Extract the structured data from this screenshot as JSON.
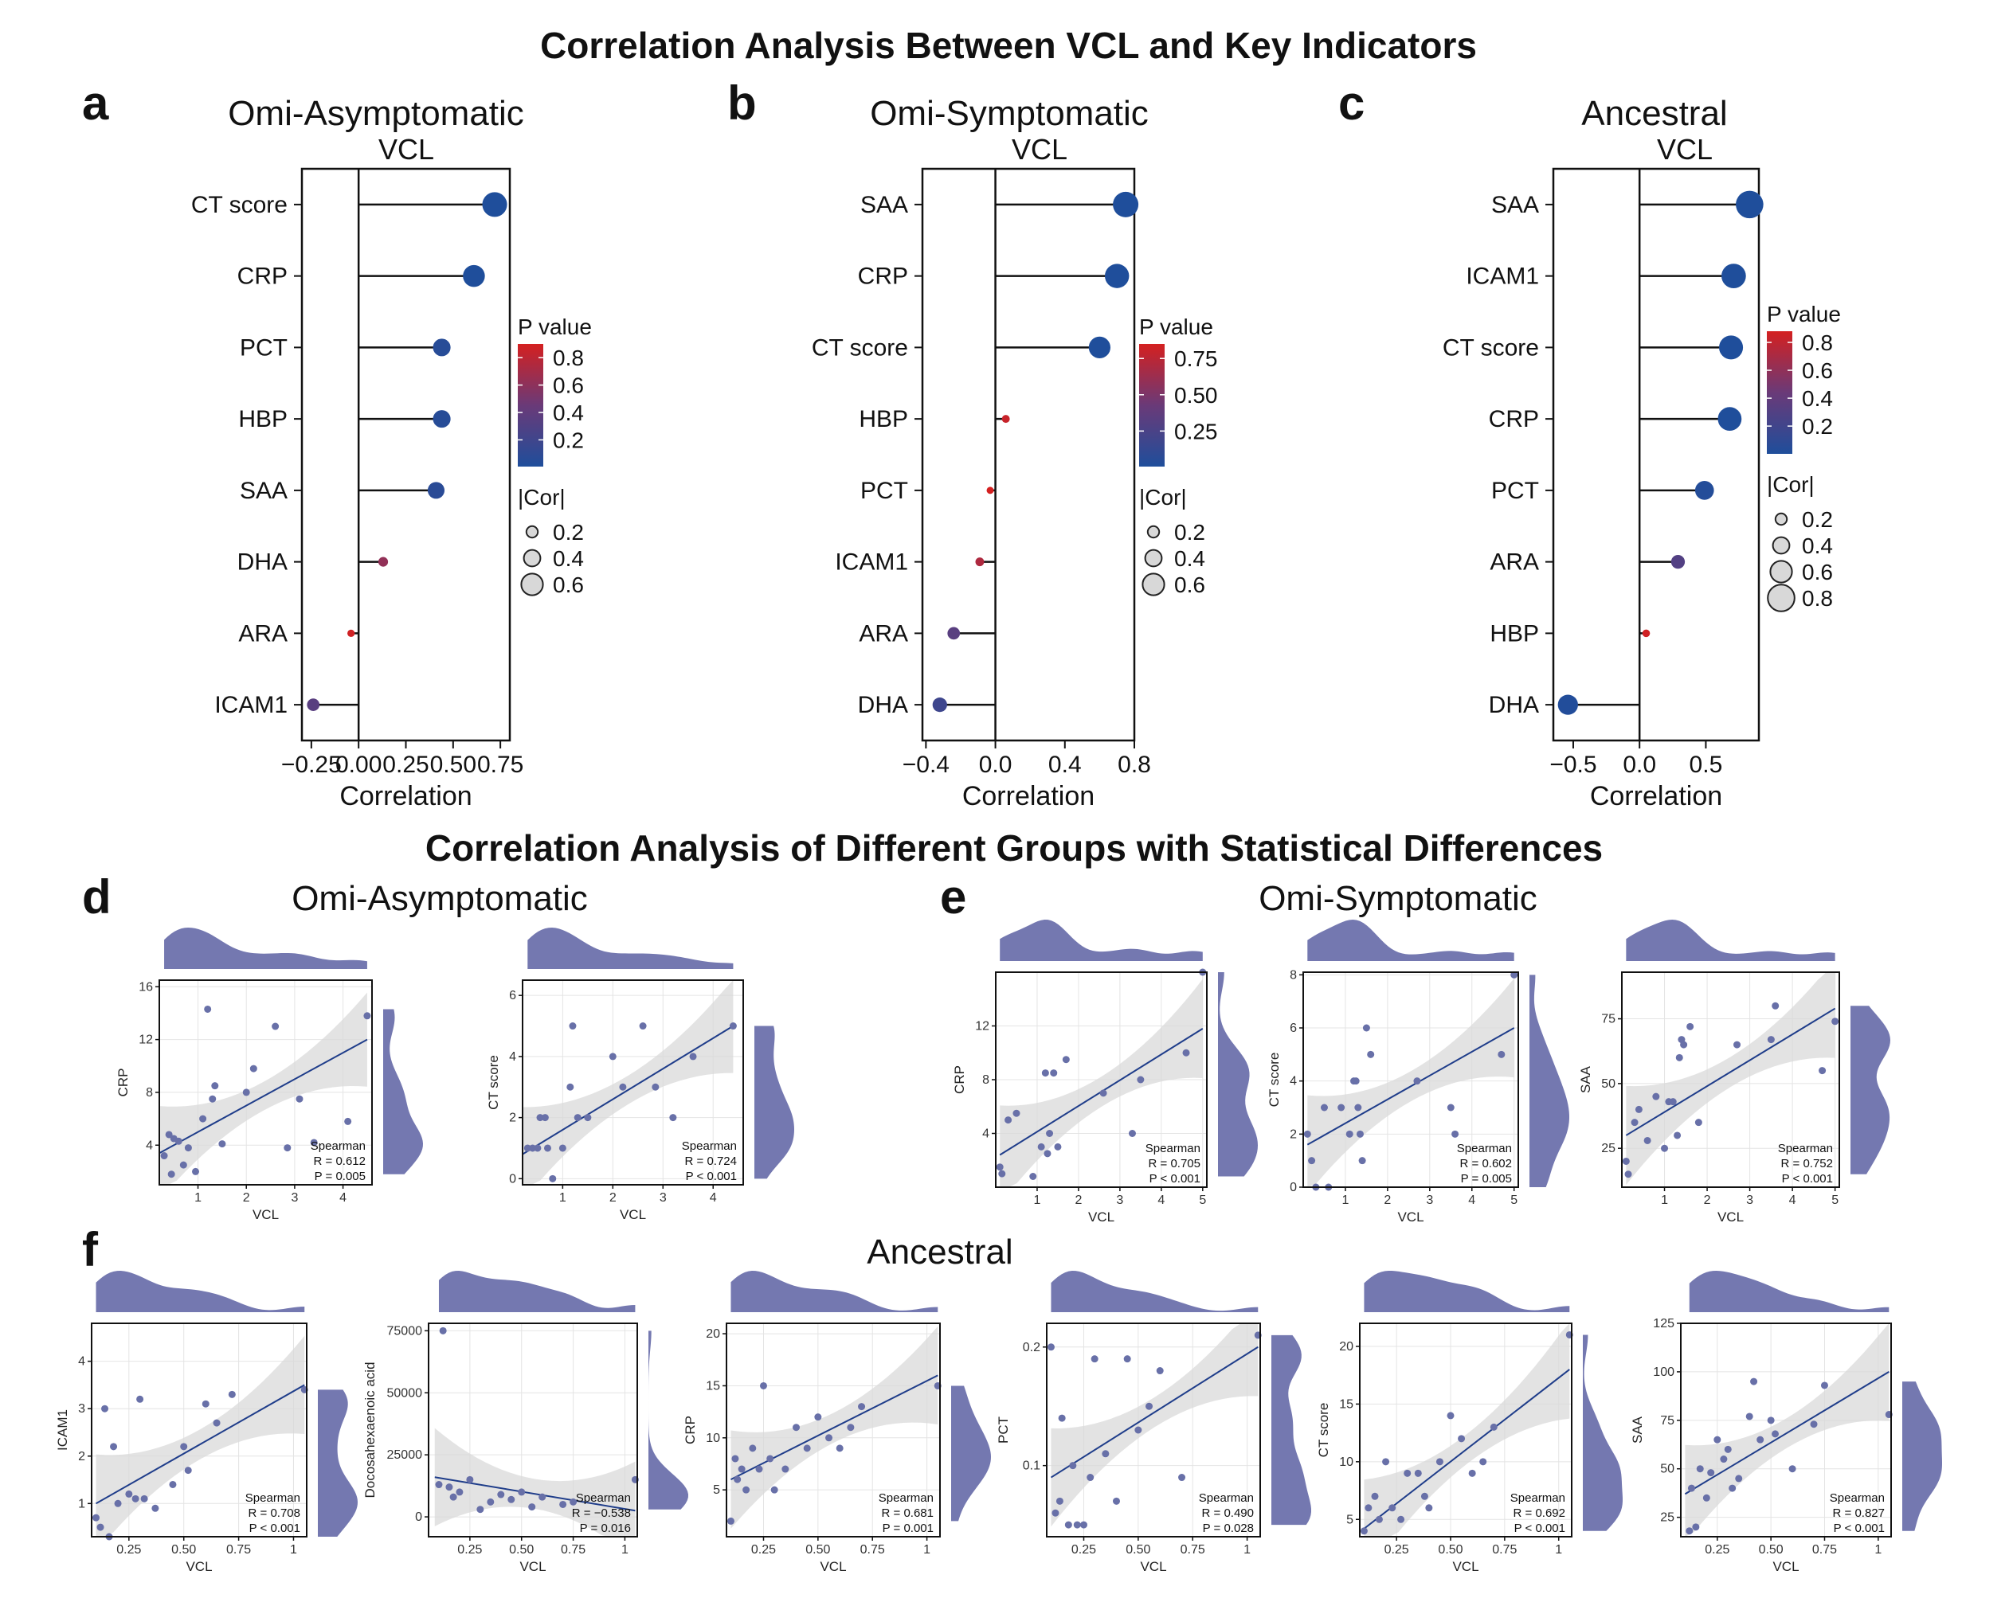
{
  "titles": {
    "top": "Correlation Analysis Between VCL and Key Indicators",
    "bottom": "Correlation Analysis of Different Groups with Statistical Differences"
  },
  "colors": {
    "low_p": "#1f4e9b",
    "mid_p": "#6a3a78",
    "high_p": "#d42020",
    "density": "#7478b0",
    "point": "#6870a8",
    "fit_line": "#1f3d8a",
    "ci_band": "#d9d9d9"
  },
  "lollipop_common": {
    "subtitle": "VCL",
    "xlabel": "Correlation",
    "legend_p_title": "P value",
    "legend_cor_title": "|Cor|"
  },
  "chart_data": [
    {
      "type": "lollipop",
      "panel": "a",
      "title": "Omi-Asymptomatic",
      "subtitle": "VCL",
      "xlabel": "Correlation",
      "xlim": [
        -0.3,
        0.8
      ],
      "xticks": [
        -0.25,
        0,
        0.25,
        0.5,
        0.75
      ],
      "xtick_labels": [
        "−0.25",
        "0.00",
        "0.25",
        "0.50",
        "0.75"
      ],
      "p_range": [
        0.005,
        0.9
      ],
      "p_ticks": [
        0.8,
        0.6,
        0.4,
        0.2
      ],
      "p_tick_labels": [
        "0.8",
        "0.6",
        "0.4",
        "0.2"
      ],
      "cor_ticks": [
        0.2,
        0.4,
        0.6
      ],
      "cor_tick_labels": [
        "0.2",
        "0.4",
        "0.6"
      ],
      "categories": [
        "CT score",
        "CRP",
        "PCT",
        "HBP",
        "SAA",
        "DHA",
        "ARA",
        "ICAM1"
      ],
      "values": [
        0.72,
        0.61,
        0.44,
        0.44,
        0.41,
        0.13,
        -0.04,
        -0.24
      ],
      "p_values": [
        0.001,
        0.005,
        0.05,
        0.05,
        0.07,
        0.62,
        0.88,
        0.35
      ]
    },
    {
      "type": "lollipop",
      "panel": "b",
      "title": "Omi-Symptomatic",
      "subtitle": "VCL",
      "xlabel": "Correlation",
      "xlim": [
        -0.42,
        0.8
      ],
      "xticks": [
        -0.4,
        0,
        0.4,
        0.8
      ],
      "xtick_labels": [
        "−0.4",
        "0.0",
        "0.4",
        "0.8"
      ],
      "p_range": [
        0.005,
        0.85
      ],
      "p_ticks": [
        0.75,
        0.5,
        0.25
      ],
      "p_tick_labels": [
        "0.75",
        "0.50",
        "0.25"
      ],
      "cor_ticks": [
        0.2,
        0.4,
        0.6
      ],
      "cor_tick_labels": [
        "0.2",
        "0.4",
        "0.6"
      ],
      "categories": [
        "SAA",
        "CRP",
        "CT score",
        "HBP",
        "PCT",
        "ICAM1",
        "ARA",
        "DHA"
      ],
      "values": [
        0.75,
        0.7,
        0.6,
        0.06,
        -0.03,
        -0.09,
        -0.24,
        -0.32
      ],
      "p_values": [
        0.001,
        0.001,
        0.005,
        0.8,
        0.85,
        0.7,
        0.33,
        0.18
      ]
    },
    {
      "type": "lollipop",
      "panel": "c",
      "title": "Ancestral",
      "subtitle": "VCL",
      "xlabel": "Correlation",
      "xlim": [
        -0.65,
        0.9
      ],
      "xticks": [
        -0.5,
        0,
        0.5
      ],
      "xtick_labels": [
        "−0.5",
        "0.0",
        "0.5"
      ],
      "p_range": [
        0.001,
        0.88
      ],
      "p_ticks": [
        0.8,
        0.6,
        0.4,
        0.2
      ],
      "p_tick_labels": [
        "0.8",
        "0.6",
        "0.4",
        "0.2"
      ],
      "cor_ticks": [
        0.2,
        0.4,
        0.6,
        0.8
      ],
      "cor_tick_labels": [
        "0.2",
        "0.4",
        "0.6",
        "0.8"
      ],
      "categories": [
        "SAA",
        "ICAM1",
        "CT score",
        "CRP",
        "PCT",
        "ARA",
        "HBP",
        "DHA"
      ],
      "values": [
        0.83,
        0.71,
        0.69,
        0.68,
        0.49,
        0.29,
        0.05,
        -0.54
      ],
      "p_values": [
        0.001,
        0.001,
        0.001,
        0.001,
        0.028,
        0.3,
        0.86,
        0.016
      ]
    },
    {
      "type": "scatter",
      "panel": "d",
      "group": "Omi-Asymptomatic",
      "xlabel": "VCL",
      "ylabel": "CRP",
      "xlim": [
        0.2,
        4.6
      ],
      "ylim": [
        1,
        16.5
      ],
      "xticks": [
        1,
        2,
        3,
        4
      ],
      "yticks": [
        4,
        8,
        12,
        16
      ],
      "ytick_labels": [
        "4",
        "8",
        "12",
        "16"
      ],
      "x": [
        0.3,
        0.4,
        0.45,
        0.5,
        0.6,
        0.7,
        0.8,
        0.95,
        1.1,
        1.2,
        1.3,
        1.35,
        1.5,
        2.0,
        2.15,
        2.6,
        2.85,
        3.1,
        3.4,
        4.1,
        4.5
      ],
      "y": [
        3.2,
        4.8,
        1.8,
        4.5,
        4.3,
        2.5,
        3.8,
        2.0,
        6.0,
        14.3,
        7.5,
        8.5,
        4.1,
        8.0,
        9.8,
        13.0,
        3.8,
        7.5,
        4.2,
        5.8,
        13.8
      ],
      "fit": {
        "x1": 0.2,
        "y1": 3.4,
        "x2": 4.5,
        "y2": 12.0
      },
      "stat_lines": [
        "Spearman",
        "R = 0.612",
        "P = 0.005"
      ]
    },
    {
      "type": "scatter",
      "panel": "d",
      "group": "Omi-Asymptomatic",
      "xlabel": "VCL",
      "ylabel": "CT score",
      "xlim": [
        0.2,
        4.6
      ],
      "ylim": [
        -0.2,
        6.5
      ],
      "xticks": [
        1,
        2,
        3,
        4
      ],
      "yticks": [
        0,
        2,
        4,
        6
      ],
      "ytick_labels": [
        "0",
        "2",
        "4",
        "6"
      ],
      "x": [
        0.3,
        0.4,
        0.5,
        0.55,
        0.65,
        0.7,
        0.8,
        1.0,
        1.15,
        1.2,
        1.3,
        1.5,
        2.0,
        2.2,
        2.6,
        2.85,
        3.2,
        3.6,
        4.4
      ],
      "y": [
        1.0,
        1.0,
        1.0,
        2.0,
        2.0,
        1.0,
        0.0,
        1.0,
        3.0,
        5.0,
        2.0,
        2.0,
        4.0,
        3.0,
        5.0,
        3.0,
        2.0,
        4.0,
        5.0
      ],
      "fit": {
        "x1": 0.2,
        "y1": 0.8,
        "x2": 4.4,
        "y2": 5.0
      },
      "stat_lines": [
        "Spearman",
        "R = 0.724",
        "P < 0.001"
      ]
    },
    {
      "type": "scatter",
      "panel": "e",
      "group": "Omi-Symptomatic",
      "xlabel": "VCL",
      "ylabel": "CRP",
      "xlim": [
        0,
        5.1
      ],
      "ylim": [
        0,
        16
      ],
      "xticks": [
        1,
        2,
        3,
        4,
        5
      ],
      "yticks": [
        4,
        8,
        12
      ],
      "ytick_labels": [
        "4",
        "8",
        "12"
      ],
      "x": [
        0.1,
        0.15,
        0.3,
        0.5,
        0.9,
        1.1,
        1.2,
        1.25,
        1.3,
        1.4,
        1.5,
        1.7,
        2.6,
        3.3,
        3.5,
        4.6,
        5.0
      ],
      "y": [
        1.5,
        1.0,
        5.0,
        5.5,
        0.8,
        3.0,
        8.5,
        2.5,
        4.0,
        8.5,
        3.0,
        9.5,
        7.0,
        4.0,
        8.0,
        10.0,
        16.0
      ],
      "fit": {
        "x1": 0.1,
        "y1": 2.4,
        "x2": 5.0,
        "y2": 11.8
      },
      "stat_lines": [
        "Spearman",
        "R = 0.705",
        "P < 0.001"
      ]
    },
    {
      "type": "scatter",
      "panel": "e",
      "group": "Omi-Symptomatic",
      "xlabel": "VCL",
      "ylabel": "CT score",
      "xlim": [
        0,
        5.1
      ],
      "ylim": [
        0,
        8.1
      ],
      "xticks": [
        1,
        2,
        3,
        4,
        5
      ],
      "yticks": [
        0,
        2,
        4,
        6,
        8
      ],
      "ytick_labels": [
        "0",
        "2",
        "4",
        "6",
        "8"
      ],
      "x": [
        0.1,
        0.2,
        0.3,
        0.5,
        0.6,
        0.9,
        1.1,
        1.2,
        1.25,
        1.3,
        1.35,
        1.4,
        1.5,
        1.6,
        2.7,
        3.5,
        3.6,
        4.7,
        5.0
      ],
      "y": [
        2.0,
        1.0,
        0.0,
        3.0,
        0.0,
        3.0,
        2.0,
        4.0,
        4.0,
        3.0,
        2.0,
        1.0,
        6.0,
        5.0,
        4.0,
        3.0,
        2.0,
        5.0,
        8.0
      ],
      "fit": {
        "x1": 0.1,
        "y1": 1.6,
        "x2": 5.0,
        "y2": 6.0
      },
      "stat_lines": [
        "Spearman",
        "R = 0.602",
        "P = 0.005"
      ]
    },
    {
      "type": "scatter",
      "panel": "e",
      "group": "Omi-Symptomatic",
      "xlabel": "VCL",
      "ylabel": "SAA",
      "xlim": [
        0,
        5.1
      ],
      "ylim": [
        10,
        93
      ],
      "xticks": [
        1,
        2,
        3,
        4,
        5
      ],
      "yticks": [
        25,
        50,
        75
      ],
      "ytick_labels": [
        "25",
        "50",
        "75"
      ],
      "x": [
        0.1,
        0.15,
        0.3,
        0.4,
        0.6,
        0.8,
        1.0,
        1.1,
        1.2,
        1.3,
        1.35,
        1.4,
        1.45,
        1.6,
        1.8,
        2.7,
        3.5,
        3.6,
        4.7,
        5.0
      ],
      "y": [
        20,
        15,
        35,
        40,
        28,
        45,
        25,
        43,
        43,
        30,
        60,
        67,
        65,
        72,
        35,
        65,
        67,
        80,
        55,
        74
      ],
      "fit": {
        "x1": 0.1,
        "y1": 30,
        "x2": 5.0,
        "y2": 79
      },
      "stat_lines": [
        "Spearman",
        "R = 0.752",
        "P < 0.001"
      ]
    },
    {
      "type": "scatter",
      "panel": "f",
      "group": "Ancestral",
      "xlabel": "VCL",
      "ylabel": "ICAM1",
      "xlim": [
        0.08,
        1.06
      ],
      "ylim": [
        0.3,
        4.8
      ],
      "xticks": [
        0.25,
        0.5,
        0.75,
        1.0
      ],
      "yticks": [
        1,
        2,
        3,
        4
      ],
      "ytick_labels": [
        "1",
        "2",
        "3",
        "4"
      ],
      "x": [
        0.1,
        0.12,
        0.14,
        0.16,
        0.18,
        0.2,
        0.25,
        0.28,
        0.3,
        0.32,
        0.37,
        0.45,
        0.5,
        0.52,
        0.6,
        0.65,
        0.72,
        1.05
      ],
      "y": [
        0.7,
        0.5,
        3.0,
        0.3,
        2.2,
        1.0,
        1.2,
        1.1,
        3.2,
        1.1,
        0.9,
        1.4,
        2.2,
        1.7,
        3.1,
        2.7,
        3.3,
        3.4
      ],
      "fit": {
        "x1": 0.1,
        "y1": 1.0,
        "x2": 1.05,
        "y2": 3.5
      },
      "stat_lines": [
        "Spearman",
        "R = 0.708",
        "P < 0.001"
      ]
    },
    {
      "type": "scatter",
      "panel": "f",
      "group": "Ancestral",
      "xlabel": "VCL",
      "ylabel": "Docosahexaenoic acid",
      "xlim": [
        0.05,
        1.06
      ],
      "ylim": [
        -8000,
        78000
      ],
      "xticks": [
        0.25,
        0.5,
        0.75,
        1.0
      ],
      "yticks": [
        0,
        25000,
        50000,
        75000
      ],
      "ytick_labels": [
        "0",
        "25000",
        "50000",
        "75000"
      ],
      "x": [
        0.1,
        0.12,
        0.15,
        0.17,
        0.2,
        0.25,
        0.3,
        0.35,
        0.4,
        0.45,
        0.5,
        0.55,
        0.6,
        0.7,
        0.75,
        1.05
      ],
      "y": [
        13000,
        75000,
        12000,
        8000,
        10000,
        15000,
        3000,
        6000,
        9000,
        7000,
        10000,
        4000,
        8000,
        5000,
        6000,
        15000
      ],
      "fit": {
        "x1": 0.08,
        "y1": 16000,
        "x2": 1.05,
        "y2": 2500
      },
      "stat_lines": [
        "Spearman",
        "R = −0.538",
        "P = 0.016"
      ]
    },
    {
      "type": "scatter",
      "panel": "f",
      "group": "Ancestral",
      "xlabel": "VCL",
      "ylabel": "CRP",
      "xlim": [
        0.08,
        1.06
      ],
      "ylim": [
        0.5,
        21
      ],
      "xticks": [
        0.25,
        0.5,
        0.75,
        1.0
      ],
      "yticks": [
        5,
        10,
        15,
        20
      ],
      "ytick_labels": [
        "5",
        "10",
        "15",
        "20"
      ],
      "x": [
        0.1,
        0.12,
        0.13,
        0.15,
        0.17,
        0.2,
        0.23,
        0.25,
        0.28,
        0.3,
        0.35,
        0.4,
        0.45,
        0.5,
        0.55,
        0.6,
        0.65,
        0.7,
        1.05
      ],
      "y": [
        2,
        8,
        6,
        7,
        5,
        9,
        7,
        15,
        8,
        5,
        7,
        11,
        9,
        12,
        10,
        9,
        11,
        13,
        15
      ],
      "fit": {
        "x1": 0.1,
        "y1": 6,
        "x2": 1.05,
        "y2": 16
      },
      "stat_lines": [
        "Spearman",
        "R = 0.681",
        "P = 0.001"
      ]
    },
    {
      "type": "scatter",
      "panel": "f",
      "group": "Ancestral",
      "xlabel": "VCL",
      "ylabel": "PCT",
      "xlim": [
        0.08,
        1.06
      ],
      "ylim": [
        0.04,
        0.22
      ],
      "xticks": [
        0.25,
        0.5,
        0.75,
        1.0
      ],
      "yticks": [
        0.1,
        0.2
      ],
      "ytick_labels": [
        "0.1",
        "0.2"
      ],
      "x": [
        0.1,
        0.12,
        0.14,
        0.15,
        0.18,
        0.2,
        0.22,
        0.25,
        0.28,
        0.3,
        0.35,
        0.4,
        0.45,
        0.5,
        0.55,
        0.6,
        0.7,
        1.05
      ],
      "y": [
        0.2,
        0.06,
        0.07,
        0.14,
        0.05,
        0.1,
        0.05,
        0.05,
        0.09,
        0.19,
        0.11,
        0.07,
        0.19,
        0.13,
        0.15,
        0.18,
        0.09,
        0.21
      ],
      "fit": {
        "x1": 0.1,
        "y1": 0.09,
        "x2": 1.05,
        "y2": 0.2
      },
      "stat_lines": [
        "Spearman",
        "R = 0.490",
        "P = 0.028"
      ]
    },
    {
      "type": "scatter",
      "panel": "f",
      "group": "Ancestral",
      "xlabel": "VCL",
      "ylabel": "CT score",
      "xlim": [
        0.08,
        1.06
      ],
      "ylim": [
        3.5,
        22
      ],
      "xticks": [
        0.25,
        0.5,
        0.75,
        1.0
      ],
      "yticks": [
        5,
        10,
        15,
        20
      ],
      "ytick_labels": [
        "5",
        "10",
        "15",
        "20"
      ],
      "x": [
        0.1,
        0.12,
        0.15,
        0.17,
        0.2,
        0.23,
        0.27,
        0.3,
        0.35,
        0.38,
        0.4,
        0.45,
        0.5,
        0.55,
        0.6,
        0.65,
        0.7,
        1.05
      ],
      "y": [
        4,
        6,
        7,
        5,
        10,
        6,
        5,
        9,
        9,
        7,
        6,
        10,
        14,
        12,
        9,
        10,
        13,
        21
      ],
      "fit": {
        "x1": 0.1,
        "y1": 4.2,
        "x2": 1.05,
        "y2": 18
      },
      "stat_lines": [
        "Spearman",
        "R = 0.692",
        "P < 0.001"
      ]
    },
    {
      "type": "scatter",
      "panel": "f",
      "group": "Ancestral",
      "xlabel": "VCL",
      "ylabel": "SAA",
      "xlim": [
        0.08,
        1.06
      ],
      "ylim": [
        15,
        125
      ],
      "xticks": [
        0.25,
        0.5,
        0.75,
        1.0
      ],
      "yticks": [
        25,
        50,
        75,
        100,
        125
      ],
      "ytick_labels": [
        "25",
        "50",
        "75",
        "100",
        "125"
      ],
      "x": [
        0.12,
        0.13,
        0.15,
        0.17,
        0.2,
        0.22,
        0.25,
        0.28,
        0.3,
        0.32,
        0.35,
        0.4,
        0.42,
        0.45,
        0.5,
        0.52,
        0.6,
        0.7,
        0.75,
        1.05
      ],
      "y": [
        18,
        40,
        20,
        50,
        35,
        48,
        65,
        55,
        60,
        40,
        45,
        77,
        95,
        65,
        75,
        68,
        50,
        73,
        93,
        78
      ],
      "fit": {
        "x1": 0.1,
        "y1": 37,
        "x2": 1.05,
        "y2": 100
      },
      "stat_lines": [
        "Spearman",
        "R = 0.827",
        "P < 0.001"
      ]
    }
  ],
  "scatter_panels": {
    "d": {
      "letter": "d",
      "title": "Omi-Asymptomatic"
    },
    "e": {
      "letter": "e",
      "title": "Omi-Symptomatic"
    },
    "f": {
      "letter": "f",
      "title": "Ancestral"
    }
  }
}
